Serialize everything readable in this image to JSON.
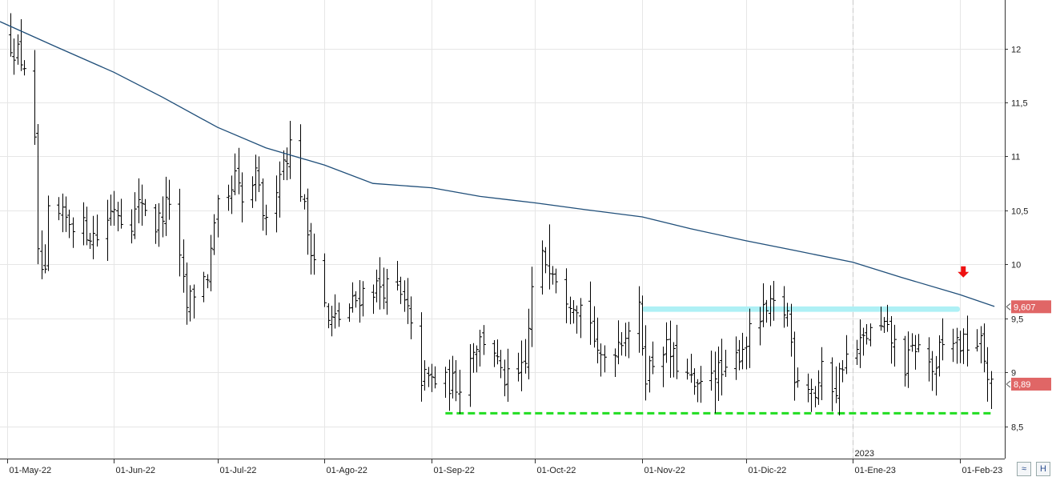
{
  "chart_data": {
    "type": "ohlc",
    "y_ticks": [
      "8,5",
      "9",
      "9,5",
      "10",
      "10,5",
      "11",
      "11,5",
      "12"
    ],
    "y_tick_values": [
      8.5,
      9,
      9.5,
      10,
      10.5,
      11,
      11.5,
      12
    ],
    "ylim": [
      8.2,
      12.45
    ],
    "x_ticks": [
      "01-May-22",
      "01-Jun-22",
      "01-Jul-22",
      "01-Ago-22",
      "01-Sep-22",
      "01-Oct-22",
      "01-Nov-22",
      "01-Dic-22",
      "01-Ene-23",
      "01-Feb-23"
    ],
    "x_tick_dates": [
      "2022-05-01",
      "2022-06-01",
      "2022-07-01",
      "2022-08-01",
      "2022-09-01",
      "2022-10-01",
      "2022-11-01",
      "2022-12-01",
      "2023-01-01",
      "2023-02-01"
    ],
    "xlim": [
      "2022-04-29",
      "2023-02-14"
    ],
    "year_marker": {
      "label": "2023",
      "date": "2023-01-01"
    },
    "grid": true,
    "moving_average": {
      "color": "#1f4e79",
      "points": [
        [
          "2022-04-29",
          12.25
        ],
        [
          "2022-05-15",
          12.02
        ],
        [
          "2022-06-01",
          11.78
        ],
        [
          "2022-06-15",
          11.55
        ],
        [
          "2022-07-01",
          11.27
        ],
        [
          "2022-07-15",
          11.08
        ],
        [
          "2022-08-01",
          10.92
        ],
        [
          "2022-08-15",
          10.75
        ],
        [
          "2022-09-01",
          10.71
        ],
        [
          "2022-09-15",
          10.63
        ],
        [
          "2022-10-01",
          10.57
        ],
        [
          "2022-10-15",
          10.51
        ],
        [
          "2022-11-01",
          10.44
        ],
        [
          "2022-11-15",
          10.33
        ],
        [
          "2022-12-01",
          10.22
        ],
        [
          "2022-12-15",
          10.13
        ],
        [
          "2023-01-01",
          10.02
        ],
        [
          "2023-01-15",
          9.88
        ],
        [
          "2023-02-01",
          9.72
        ],
        [
          "2023-02-11",
          9.61
        ]
      ]
    },
    "resistance_zone": {
      "from": "2022-11-01",
      "to": "2023-02-01",
      "y_low": 9.56,
      "y_high": 9.61,
      "color": "#aef0f5"
    },
    "support_line": {
      "from": "2022-09-05",
      "to": "2023-02-11",
      "y": 8.62,
      "color": "#22dd22"
    },
    "signal_arrow": {
      "date": "2023-02-02",
      "y": 9.93,
      "color": "#ee1111"
    },
    "last_price_badges": [
      {
        "label": "9,607",
        "value": 9.607,
        "color": "#e06666"
      },
      {
        "label": "8,89",
        "value": 8.89,
        "color": "#e06666"
      }
    ],
    "bar_color": "#000000",
    "anchors": [
      [
        "2022-05-01",
        12.1
      ],
      [
        "2022-05-06",
        11.85
      ],
      [
        "2022-05-09",
        11.1
      ],
      [
        "2022-05-10",
        10.05
      ],
      [
        "2022-05-12",
        9.85
      ],
      [
        "2022-05-13",
        10.45
      ],
      [
        "2022-05-20",
        10.4
      ],
      [
        "2022-05-27",
        10.25
      ],
      [
        "2022-06-01",
        10.55
      ],
      [
        "2022-06-05",
        10.35
      ],
      [
        "2022-06-09",
        10.6
      ],
      [
        "2022-06-13",
        10.35
      ],
      [
        "2022-06-17",
        10.6
      ],
      [
        "2022-06-20",
        10.0
      ],
      [
        "2022-06-22",
        9.6
      ],
      [
        "2022-06-24",
        9.75
      ],
      [
        "2022-06-28",
        9.9
      ],
      [
        "2022-07-01",
        10.5
      ],
      [
        "2022-07-04",
        10.55
      ],
      [
        "2022-07-06",
        10.8
      ],
      [
        "2022-07-08",
        10.55
      ],
      [
        "2022-07-12",
        10.8
      ],
      [
        "2022-07-15",
        10.35
      ],
      [
        "2022-07-19",
        10.9
      ],
      [
        "2022-07-22",
        11.1
      ],
      [
        "2022-07-24",
        10.9
      ],
      [
        "2022-07-27",
        10.3
      ],
      [
        "2022-07-30",
        9.95
      ],
      [
        "2022-08-02",
        9.45
      ],
      [
        "2022-08-07",
        9.55
      ],
      [
        "2022-08-12",
        9.75
      ],
      [
        "2022-08-17",
        9.8
      ],
      [
        "2022-08-22",
        9.75
      ],
      [
        "2022-08-25",
        9.55
      ],
      [
        "2022-08-27",
        9.2
      ],
      [
        "2022-08-29",
        8.95
      ],
      [
        "2022-09-05",
        8.9
      ],
      [
        "2022-09-10",
        8.9
      ],
      [
        "2022-09-13",
        9.25
      ],
      [
        "2022-09-18",
        9.35
      ],
      [
        "2022-09-21",
        8.95
      ],
      [
        "2022-09-25",
        8.9
      ],
      [
        "2022-09-28",
        9.05
      ],
      [
        "2022-09-30",
        9.75
      ],
      [
        "2022-10-03",
        10.05
      ],
      [
        "2022-10-06",
        10.0
      ],
      [
        "2022-10-09",
        9.75
      ],
      [
        "2022-10-13",
        9.65
      ],
      [
        "2022-10-17",
        9.5
      ],
      [
        "2022-10-19",
        9.1
      ],
      [
        "2022-10-24",
        9.25
      ],
      [
        "2022-10-31",
        9.55
      ],
      [
        "2022-11-02",
        9.0
      ],
      [
        "2022-11-07",
        9.25
      ],
      [
        "2022-11-14",
        8.95
      ],
      [
        "2022-11-17",
        8.8
      ],
      [
        "2022-11-21",
        9.05
      ],
      [
        "2022-11-25",
        8.95
      ],
      [
        "2022-11-30",
        9.25
      ],
      [
        "2022-12-05",
        9.5
      ],
      [
        "2022-12-09",
        9.6
      ],
      [
        "2022-12-13",
        9.55
      ],
      [
        "2022-12-15",
        9.0
      ],
      [
        "2022-12-19",
        8.9
      ],
      [
        "2022-12-21",
        8.8
      ],
      [
        "2022-12-23",
        9.0
      ],
      [
        "2022-12-27",
        8.85
      ],
      [
        "2022-12-29",
        9.1
      ],
      [
        "2023-01-02",
        9.2
      ],
      [
        "2023-01-05",
        9.35
      ],
      [
        "2023-01-10",
        9.4
      ],
      [
        "2023-01-13",
        9.25
      ],
      [
        "2023-01-16",
        9.05
      ],
      [
        "2023-01-19",
        9.25
      ],
      [
        "2023-01-23",
        9.1
      ],
      [
        "2023-01-25",
        8.95
      ],
      [
        "2023-01-26",
        9.2
      ],
      [
        "2023-01-29",
        9.3
      ],
      [
        "2023-02-02",
        9.25
      ],
      [
        "2023-02-05",
        9.3
      ],
      [
        "2023-02-07",
        9.25
      ],
      [
        "2023-02-09",
        9.0
      ],
      [
        "2023-02-10",
        8.85
      ]
    ],
    "low_overrides": [
      [
        "2022-11-22",
        8.62
      ],
      [
        "2023-02-10",
        8.66
      ]
    ],
    "high_overrides": [
      [
        "2022-07-22",
        11.33
      ],
      [
        "2022-10-05",
        10.37
      ],
      [
        "2023-01-27",
        9.5
      ]
    ]
  },
  "ui": {
    "corner_icons": [
      "wave-icon",
      "h-icon"
    ],
    "corner_glyphs": [
      "≈",
      "H"
    ]
  }
}
